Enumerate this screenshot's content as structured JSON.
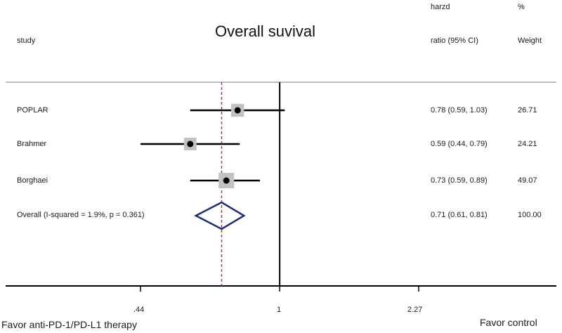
{
  "chart_data": {
    "type": "forest",
    "title": "Overall suvival",
    "columns": {
      "study": "study",
      "effect": [
        "harzd",
        "ratio (95% CI)"
      ],
      "weight": [
        "%",
        "Weight"
      ]
    },
    "studies": [
      {
        "name": "POPLAR",
        "hr": 0.78,
        "lower": 0.59,
        "upper": 1.03,
        "hr_text": "0.78 (0.59, 1.03)",
        "weight": 26.71,
        "weight_text": "26.71"
      },
      {
        "name": "Brahmer",
        "hr": 0.59,
        "lower": 0.44,
        "upper": 0.79,
        "hr_text": "0.59 (0.44, 0.79)",
        "weight": 24.21,
        "weight_text": "24.21"
      },
      {
        "name": "Borghaei",
        "hr": 0.73,
        "lower": 0.59,
        "upper": 0.89,
        "hr_text": "0.73 (0.59, 0.89)",
        "weight": 49.07,
        "weight_text": "49.07"
      }
    ],
    "overall": {
      "label": "Overall  (I-squared = 1.9%, p = 0.361)",
      "hr": 0.71,
      "lower": 0.61,
      "upper": 0.81,
      "hr_text": "0.71 (0.61, 0.81)",
      "weight_text": "100.00"
    },
    "x_scale": "log",
    "x_ticks": [
      {
        "value": 0.44,
        "label": ".44"
      },
      {
        "value": 1,
        "label": "1"
      },
      {
        "value": 2.27,
        "label": "2.27"
      }
    ],
    "null_line": 1,
    "reference_line": 0.71,
    "footer_left": "Favor anti-PD-1/PD-L1 therapy",
    "footer_right": "Favor control",
    "colors": {
      "line": "#000000",
      "square": "#c2c2c2",
      "diamond": "#1f2d7a",
      "reference": "#c0392b"
    }
  }
}
